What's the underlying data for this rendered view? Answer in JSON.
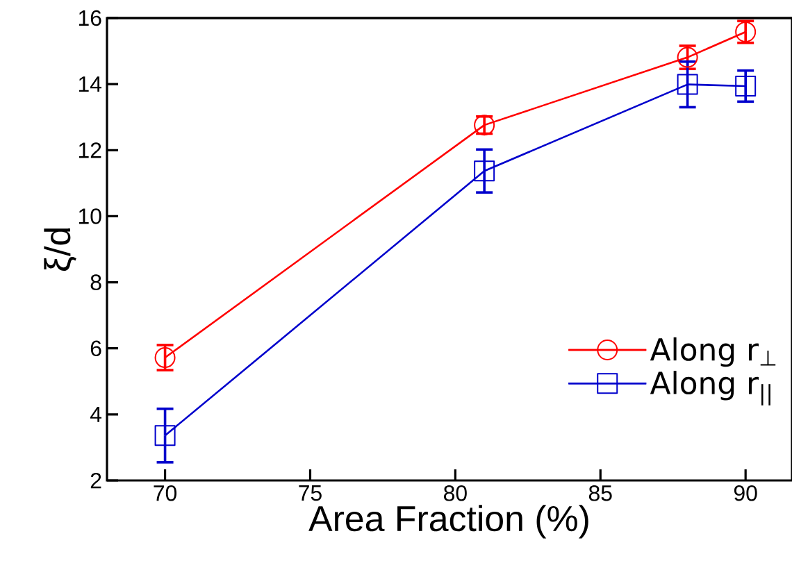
{
  "chart_data": {
    "type": "line",
    "xlabel": "Area Fraction (%)",
    "ylabel": "ξ/d",
    "x": [
      70,
      81,
      88,
      90
    ],
    "series": [
      {
        "name": "Along r$_{⊥}$",
        "color": "#ff0000",
        "marker": "circle",
        "values": [
          5.72,
          12.76,
          14.81,
          15.58
        ],
        "errors": [
          0.38,
          0.26,
          0.35,
          0.33
        ]
      },
      {
        "name": "Along r$_{||}$",
        "color": "#0000cc",
        "marker": "square",
        "values": [
          3.36,
          11.37,
          13.99,
          13.94
        ],
        "errors": [
          0.81,
          0.65,
          0.69,
          0.47
        ]
      }
    ],
    "xlim": [
      68,
      91.6
    ],
    "ylim": [
      2,
      16
    ],
    "xticks": [
      70,
      75,
      80,
      85,
      90
    ],
    "yticks": [
      2,
      4,
      6,
      8,
      10,
      12,
      14,
      16
    ],
    "legend": "bottom right",
    "grid": false,
    "line_style": "solid"
  }
}
